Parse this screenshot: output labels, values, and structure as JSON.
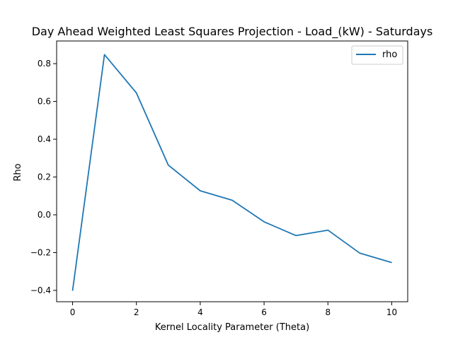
{
  "chart_data": {
    "type": "line",
    "title": "Day Ahead Weighted Least Squares Projection - Load_(kW) - Saturdays",
    "xlabel": "Kernel Locality Parameter (Theta)",
    "ylabel": "Rho",
    "xlim": [
      -0.5,
      10.5
    ],
    "ylim": [
      -0.46,
      0.92
    ],
    "xticks": [
      0,
      2,
      4,
      6,
      8,
      10
    ],
    "xtick_labels": [
      "0",
      "2",
      "4",
      "6",
      "8",
      "10"
    ],
    "yticks": [
      -0.4,
      -0.2,
      0.0,
      0.2,
      0.4,
      0.6,
      0.8
    ],
    "ytick_labels": [
      "−0.4",
      "−0.2",
      "0.0",
      "0.2",
      "0.4",
      "0.6",
      "0.8"
    ],
    "grid": false,
    "legend": {
      "position": "top-right"
    },
    "series": [
      {
        "name": "rho",
        "color": "#1f77b4",
        "x": [
          0,
          1,
          2,
          3,
          4,
          5,
          6,
          7,
          8,
          9,
          10
        ],
        "y": [
          -0.402,
          0.848,
          0.645,
          0.263,
          0.127,
          0.077,
          -0.037,
          -0.11,
          -0.081,
          -0.203,
          -0.253
        ]
      }
    ]
  }
}
